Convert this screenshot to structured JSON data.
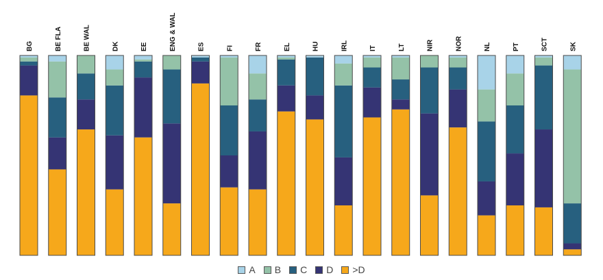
{
  "chart_data": {
    "type": "bar",
    "stacked": true,
    "percent": true,
    "categories": [
      "BG",
      "BE FLA",
      "BE WAL",
      "DK",
      "EE",
      "ENG & WAL",
      "ES",
      "FI",
      "FR",
      "EL",
      "HU",
      "IRL",
      "IT",
      "LT",
      "NIR",
      "NOR",
      "NL",
      "PT",
      "SCT",
      "SK"
    ],
    "series": [
      {
        "name": ">D",
        "color": "#f6a81b",
        "values": [
          80,
          43,
          63,
          33,
          59,
          26,
          86,
          34,
          33,
          72,
          68,
          25,
          69,
          73,
          30,
          64,
          20,
          25,
          24,
          3
        ]
      },
      {
        "name": "D",
        "color": "#353474",
        "values": [
          15,
          16,
          15,
          27,
          30,
          40,
          11,
          16,
          29,
          13,
          12,
          24,
          15,
          5,
          41,
          19,
          17,
          26,
          39,
          3
        ]
      },
      {
        "name": "C",
        "color": "#27607f",
        "values": [
          2,
          20,
          13,
          25,
          8,
          27,
          2,
          25,
          16,
          13,
          19,
          36,
          10,
          10,
          23,
          11,
          30,
          24,
          32,
          20
        ]
      },
      {
        "name": "B",
        "color": "#94c2a8",
        "values": [
          2,
          18,
          9,
          8,
          1,
          7,
          0,
          24,
          13,
          1,
          0,
          11,
          5,
          11,
          6,
          5,
          16,
          16,
          4,
          67
        ]
      },
      {
        "name": "A",
        "color": "#a8d3e8",
        "values": [
          1,
          3,
          0,
          7,
          2,
          0,
          1,
          1,
          9,
          1,
          1,
          4,
          1,
          1,
          0,
          1,
          17,
          9,
          1,
          7
        ]
      }
    ],
    "legend_order": [
      "A",
      "B",
      "C",
      "D",
      ">D"
    ],
    "ylim": [
      0,
      100
    ],
    "grid": false,
    "legend_position": "bottom"
  }
}
